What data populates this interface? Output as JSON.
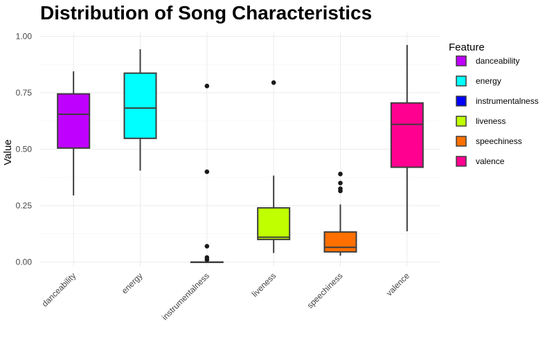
{
  "chart_data": {
    "type": "box",
    "title": "Distribution of Song Characteristics",
    "xlabel": "",
    "ylabel": "Value",
    "ylim": [
      -0.02,
      1.02
    ],
    "yticks": [
      0.0,
      0.25,
      0.5,
      0.75,
      1.0
    ],
    "ytick_labels": [
      "0.00",
      "0.25",
      "0.50",
      "0.75",
      "1.00"
    ],
    "grid": true,
    "legend": {
      "title": "Feature",
      "placement": "right"
    },
    "categories": [
      "danceability",
      "energy",
      "instrumentalness",
      "liveness",
      "speechiness",
      "valence"
    ],
    "series": [
      {
        "name": "danceability",
        "color": "#BF00FF",
        "min": 0.295,
        "q1": 0.505,
        "median": 0.655,
        "q3": 0.745,
        "max": 0.845,
        "outliers": []
      },
      {
        "name": "energy",
        "color": "#00FFFF",
        "min": 0.405,
        "q1": 0.548,
        "median": 0.682,
        "q3": 0.837,
        "max": 0.943,
        "outliers": []
      },
      {
        "name": "instrumentalness",
        "color": "#0000FF",
        "min": 0.0,
        "q1": 0.0,
        "median": 0.0,
        "q3": 0.0,
        "max": 0.0,
        "outliers": [
          0.78,
          0.4,
          0.07,
          0.02,
          0.01
        ]
      },
      {
        "name": "liveness",
        "color": "#BFFF00",
        "min": 0.04,
        "q1": 0.1,
        "median": 0.11,
        "q3": 0.24,
        "max": 0.383,
        "outliers": [
          0.795
        ]
      },
      {
        "name": "speechiness",
        "color": "#FF7000",
        "min": 0.028,
        "q1": 0.045,
        "median": 0.065,
        "q3": 0.133,
        "max": 0.255,
        "outliers": [
          0.39,
          0.35,
          0.325,
          0.315
        ]
      },
      {
        "name": "valence",
        "color": "#FF0090",
        "min": 0.136,
        "q1": 0.42,
        "median": 0.61,
        "q3": 0.705,
        "max": 0.962,
        "outliers": []
      }
    ]
  }
}
